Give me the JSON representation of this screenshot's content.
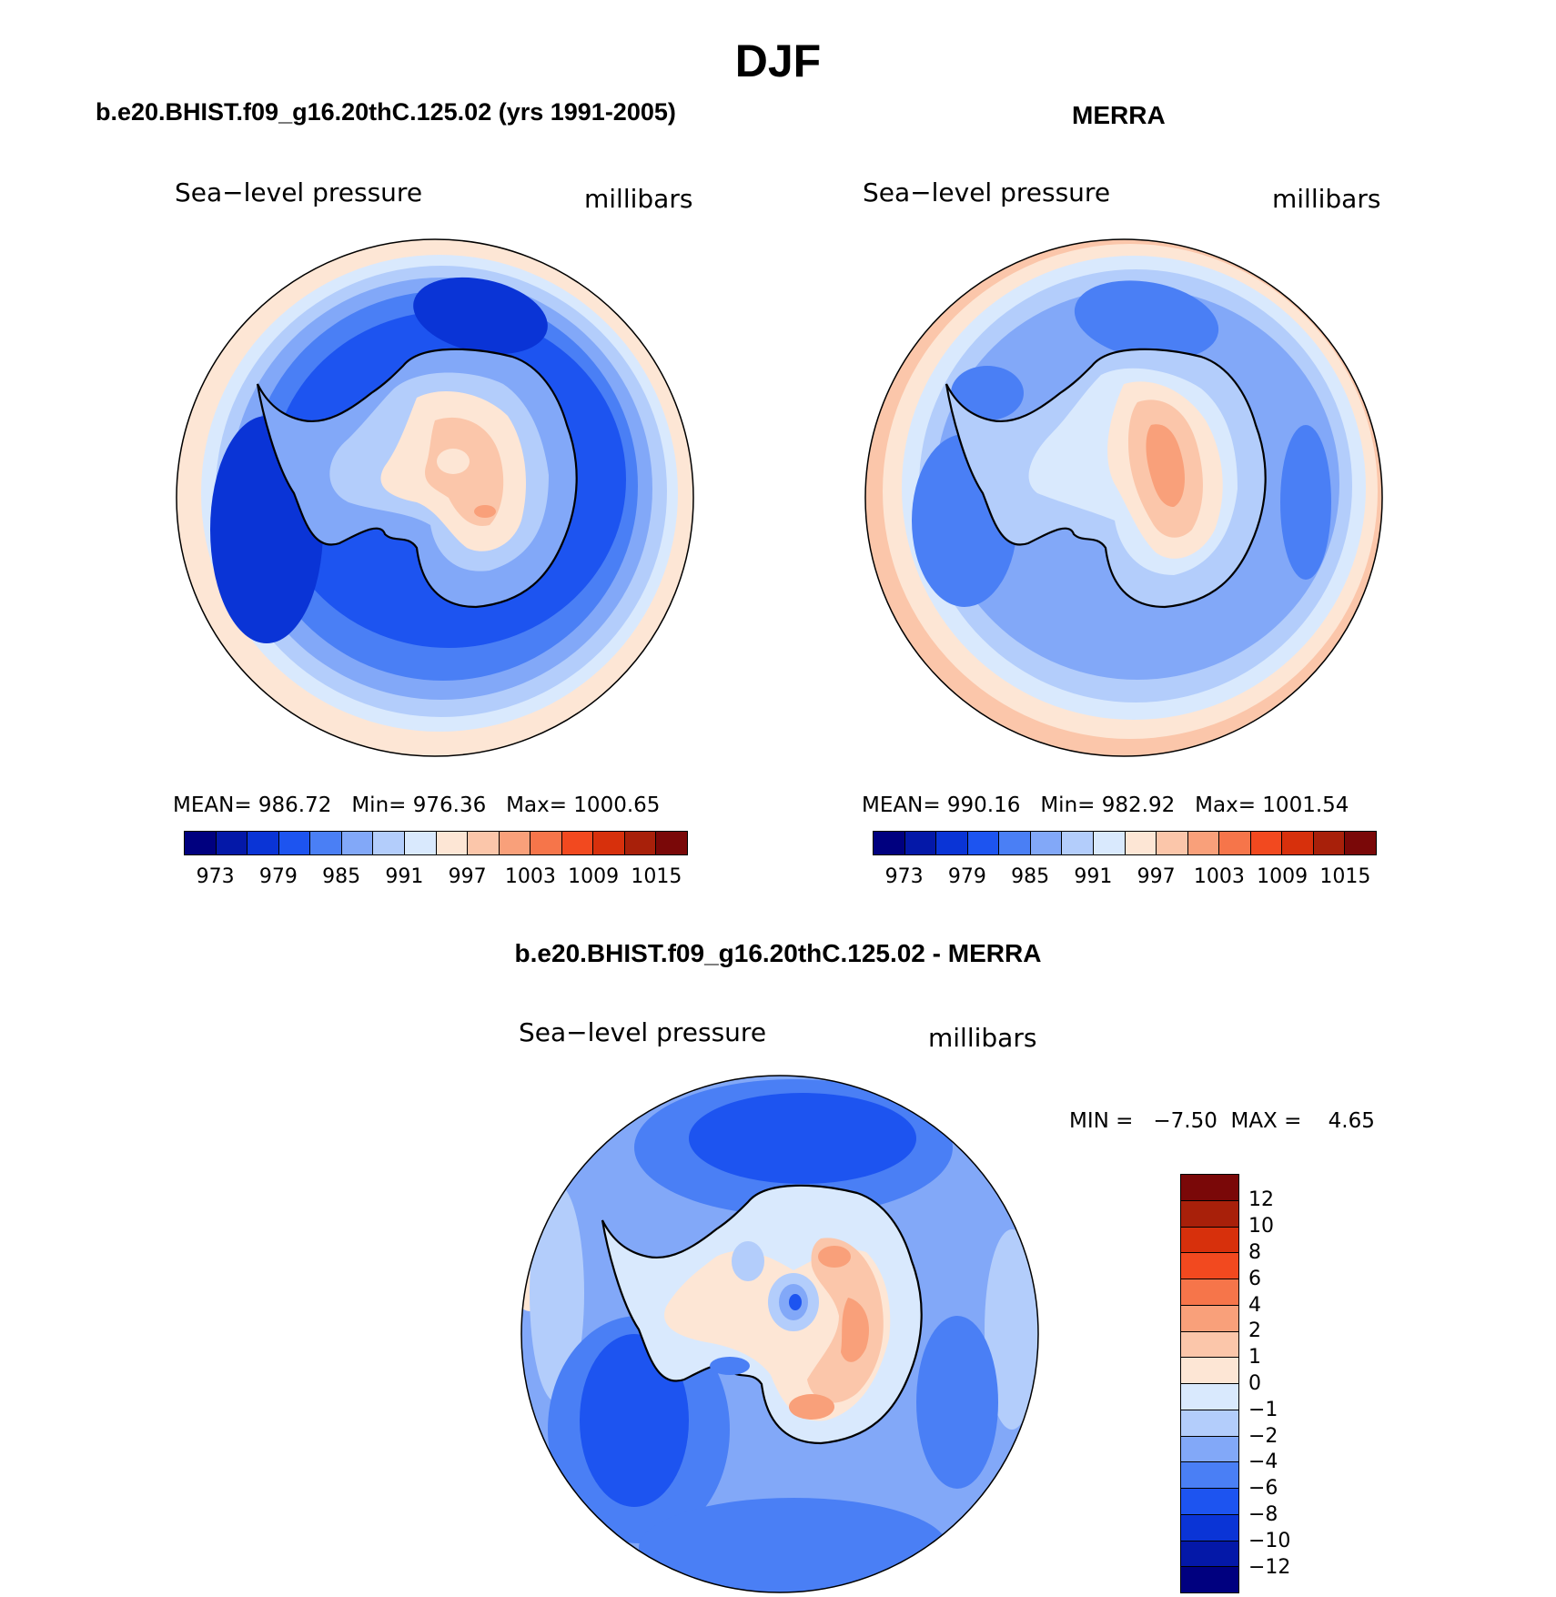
{
  "chart_data": [
    {
      "type": "heatmap",
      "panel": "model",
      "title": "b.e20.BHIST.f09_g16.20thC.125.02 (yrs 1991-2005)",
      "variable": "Sea−level pressure",
      "units": "millibars",
      "mean_label": "MEAN=",
      "mean": "986.72",
      "min_label": "Min=",
      "min": "976.36",
      "max_label": "Max=",
      "max": "1000.65",
      "colorbar_ticks": [
        "973",
        "979",
        "985",
        "991",
        "997",
        "1003",
        "1009",
        "1015"
      ]
    },
    {
      "type": "heatmap",
      "panel": "reference",
      "title": "MERRA",
      "variable": "Sea−level pressure",
      "units": "millibars",
      "mean_label": "MEAN=",
      "mean": "990.16",
      "min_label": "Min=",
      "min": "982.92",
      "max_label": "Max=",
      "max": "1001.54",
      "colorbar_ticks": [
        "973",
        "979",
        "985",
        "991",
        "997",
        "1003",
        "1009",
        "1015"
      ]
    },
    {
      "type": "heatmap",
      "panel": "difference",
      "title": "b.e20.BHIST.f09_g16.20thC.125.02 - MERRA",
      "variable": "Sea−level pressure",
      "units": "millibars",
      "min_label": "MIN =",
      "min": "−7.50",
      "max_label": "MAX =",
      "max": "4.65",
      "colorbar_ticks": [
        "12",
        "10",
        "8",
        "6",
        "4",
        "2",
        "1",
        "0",
        "−1",
        "−2",
        "−4",
        "−6",
        "−8",
        "−10",
        "−12"
      ]
    }
  ],
  "season": "DJF",
  "colors": {
    "abs_scale": [
      "#00007f",
      "#0418a8",
      "#0a34d6",
      "#1d54f0",
      "#4a7ff5",
      "#82a8f8",
      "#b3cdfb",
      "#d9e9fd",
      "#fde6d5",
      "#fbc6aa",
      "#f9a07a",
      "#f6754a",
      "#f2491f",
      "#d7300c",
      "#a8200a",
      "#7a0808"
    ],
    "diff_scale": [
      "#7a0808",
      "#a8200a",
      "#d7300c",
      "#f2491f",
      "#f6754a",
      "#f9a07a",
      "#fbc6aa",
      "#fde6d5",
      "#d9e9fd",
      "#b3cdfb",
      "#82a8f8",
      "#4a7ff5",
      "#1d54f0",
      "#0a34d6",
      "#0418a8",
      "#00007f"
    ]
  }
}
